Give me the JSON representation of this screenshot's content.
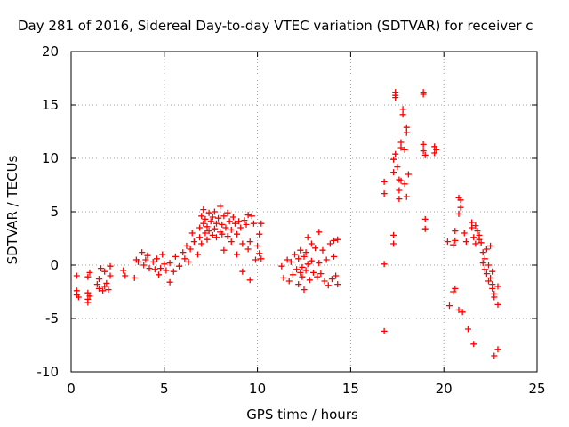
{
  "chart_data": {
    "type": "scatter",
    "title": "Day 281 of 2016, Sidereal Day-to-day VTEC variation (SDTVAR) for receiver c",
    "xlabel": "GPS time / hours",
    "ylabel": "SDTVAR / TECUs",
    "xlim": [
      0,
      25
    ],
    "ylim": [
      -10,
      20
    ],
    "xticks": [
      0,
      5,
      10,
      15,
      20,
      25
    ],
    "yticks": [
      -10,
      -5,
      0,
      5,
      10,
      15,
      20
    ],
    "grid": true,
    "marker": "+",
    "series_color": "#ff0000",
    "series": [
      {
        "name": "SDTVAR",
        "points": [
          [
            0.3,
            -1.0
          ],
          [
            0.3,
            -2.4
          ],
          [
            0.3,
            -2.8
          ],
          [
            0.4,
            -3.0
          ],
          [
            0.9,
            -1.1
          ],
          [
            0.9,
            -2.6
          ],
          [
            0.9,
            -3.2
          ],
          [
            0.9,
            -3.5
          ],
          [
            1.0,
            -2.9
          ],
          [
            1.0,
            -0.7
          ],
          [
            1.4,
            -1.8
          ],
          [
            1.5,
            -2.2
          ],
          [
            1.5,
            -1.3
          ],
          [
            1.6,
            -0.3
          ],
          [
            1.7,
            -2.4
          ],
          [
            1.8,
            -2.0
          ],
          [
            1.8,
            -0.6
          ],
          [
            1.9,
            -1.7
          ],
          [
            2.0,
            -2.3
          ],
          [
            2.1,
            -0.1
          ],
          [
            2.1,
            -1.0
          ],
          [
            2.8,
            -0.5
          ],
          [
            2.9,
            -1.0
          ],
          [
            3.4,
            -1.2
          ],
          [
            3.5,
            0.5
          ],
          [
            3.6,
            0.3
          ],
          [
            3.8,
            1.2
          ],
          [
            3.9,
            0.0
          ],
          [
            4.0,
            0.5
          ],
          [
            4.1,
            0.9
          ],
          [
            4.2,
            -0.3
          ],
          [
            4.4,
            0.3
          ],
          [
            4.5,
            -0.4
          ],
          [
            4.6,
            0.6
          ],
          [
            4.7,
            -0.9
          ],
          [
            4.8,
            -0.3
          ],
          [
            4.9,
            1.0
          ],
          [
            5.0,
            0.1
          ],
          [
            5.1,
            -0.5
          ],
          [
            5.3,
            -1.6
          ],
          [
            5.3,
            0.2
          ],
          [
            5.5,
            -0.6
          ],
          [
            5.6,
            0.8
          ],
          [
            5.8,
            -0.1
          ],
          [
            6.0,
            1.2
          ],
          [
            6.1,
            0.6
          ],
          [
            6.2,
            1.8
          ],
          [
            6.3,
            0.3
          ],
          [
            6.4,
            1.5
          ],
          [
            6.5,
            3.0
          ],
          [
            6.6,
            2.2
          ],
          [
            6.8,
            1.0
          ],
          [
            6.9,
            2.6
          ],
          [
            6.9,
            3.5
          ],
          [
            7.0,
            4.6
          ],
          [
            7.0,
            2.0
          ],
          [
            7.1,
            5.2
          ],
          [
            7.1,
            3.9
          ],
          [
            7.2,
            3.0
          ],
          [
            7.2,
            4.3
          ],
          [
            7.3,
            2.4
          ],
          [
            7.3,
            3.6
          ],
          [
            7.4,
            4.9
          ],
          [
            7.4,
            3.2
          ],
          [
            7.5,
            4.1
          ],
          [
            7.6,
            2.8
          ],
          [
            7.6,
            4.5
          ],
          [
            7.7,
            3.4
          ],
          [
            7.7,
            5.0
          ],
          [
            7.8,
            3.9
          ],
          [
            7.8,
            2.6
          ],
          [
            7.9,
            4.4
          ],
          [
            8.0,
            3.1
          ],
          [
            8.0,
            5.5
          ],
          [
            8.1,
            3.8
          ],
          [
            8.1,
            2.9
          ],
          [
            8.2,
            4.6
          ],
          [
            8.2,
            1.4
          ],
          [
            8.3,
            3.5
          ],
          [
            8.4,
            4.9
          ],
          [
            8.4,
            2.7
          ],
          [
            8.5,
            4.1
          ],
          [
            8.6,
            3.3
          ],
          [
            8.6,
            2.2
          ],
          [
            8.7,
            4.5
          ],
          [
            8.8,
            3.9
          ],
          [
            8.9,
            1.0
          ],
          [
            8.9,
            2.9
          ],
          [
            9.0,
            4.1
          ],
          [
            9.1,
            3.5
          ],
          [
            9.2,
            2.0
          ],
          [
            9.2,
            -0.6
          ],
          [
            9.3,
            4.2
          ],
          [
            9.4,
            3.8
          ],
          [
            9.5,
            4.7
          ],
          [
            9.5,
            1.5
          ],
          [
            9.6,
            -1.4
          ],
          [
            9.6,
            2.2
          ],
          [
            9.7,
            4.6
          ],
          [
            9.8,
            3.9
          ],
          [
            9.9,
            0.5
          ],
          [
            10.0,
            1.8
          ],
          [
            10.1,
            2.9
          ],
          [
            10.1,
            1.1
          ],
          [
            10.2,
            3.9
          ],
          [
            10.2,
            0.6
          ],
          [
            11.3,
            -0.1
          ],
          [
            11.4,
            -1.2
          ],
          [
            11.6,
            0.5
          ],
          [
            11.7,
            -1.5
          ],
          [
            11.8,
            0.3
          ],
          [
            11.9,
            -0.9
          ],
          [
            12.0,
            1.0
          ],
          [
            12.1,
            -0.4
          ],
          [
            12.2,
            -1.8
          ],
          [
            12.2,
            0.6
          ],
          [
            12.3,
            -0.7
          ],
          [
            12.3,
            1.4
          ],
          [
            12.4,
            -0.2
          ],
          [
            12.4,
            -1.1
          ],
          [
            12.5,
            0.8
          ],
          [
            12.5,
            -2.3
          ],
          [
            12.6,
            1.2
          ],
          [
            12.6,
            -0.5
          ],
          [
            12.7,
            2.6
          ],
          [
            12.7,
            0.1
          ],
          [
            12.8,
            -1.4
          ],
          [
            12.9,
            2.0
          ],
          [
            12.9,
            0.4
          ],
          [
            13.0,
            -0.7
          ],
          [
            13.1,
            1.6
          ],
          [
            13.2,
            -1.1
          ],
          [
            13.3,
            3.1
          ],
          [
            13.3,
            0.2
          ],
          [
            13.4,
            -0.8
          ],
          [
            13.5,
            1.4
          ],
          [
            13.6,
            -1.5
          ],
          [
            13.7,
            0.5
          ],
          [
            13.8,
            -1.9
          ],
          [
            13.9,
            2.0
          ],
          [
            14.0,
            -1.3
          ],
          [
            14.1,
            2.3
          ],
          [
            14.1,
            0.8
          ],
          [
            14.2,
            -1.0
          ],
          [
            14.3,
            2.4
          ],
          [
            14.3,
            -1.8
          ],
          [
            16.8,
            7.8
          ],
          [
            16.8,
            6.7
          ],
          [
            16.8,
            0.1
          ],
          [
            16.8,
            -6.2
          ],
          [
            17.3,
            2.0
          ],
          [
            17.3,
            2.8
          ],
          [
            17.3,
            9.9
          ],
          [
            17.3,
            8.7
          ],
          [
            17.4,
            10.4
          ],
          [
            17.4,
            15.7
          ],
          [
            17.4,
            16.2
          ],
          [
            17.4,
            15.9
          ],
          [
            17.5,
            9.2
          ],
          [
            17.6,
            8.0
          ],
          [
            17.6,
            7.0
          ],
          [
            17.6,
            6.2
          ],
          [
            17.7,
            11.5
          ],
          [
            17.7,
            11.0
          ],
          [
            17.7,
            7.9
          ],
          [
            17.8,
            14.1
          ],
          [
            17.8,
            14.6
          ],
          [
            17.9,
            10.8
          ],
          [
            17.9,
            7.6
          ],
          [
            18.0,
            6.4
          ],
          [
            18.0,
            12.4
          ],
          [
            18.0,
            12.9
          ],
          [
            18.1,
            8.5
          ],
          [
            18.9,
            16.0
          ],
          [
            18.9,
            16.2
          ],
          [
            18.9,
            11.3
          ],
          [
            18.9,
            10.7
          ],
          [
            19.0,
            10.3
          ],
          [
            19.0,
            4.3
          ],
          [
            19.0,
            3.4
          ],
          [
            19.5,
            11.1
          ],
          [
            19.5,
            10.5
          ],
          [
            19.6,
            10.8
          ],
          [
            20.2,
            2.2
          ],
          [
            20.3,
            -3.8
          ],
          [
            20.5,
            1.9
          ],
          [
            20.5,
            -2.5
          ],
          [
            20.6,
            2.3
          ],
          [
            20.6,
            -2.2
          ],
          [
            20.6,
            3.2
          ],
          [
            20.8,
            -4.2
          ],
          [
            20.8,
            4.8
          ],
          [
            20.8,
            6.3
          ],
          [
            20.9,
            6.1
          ],
          [
            20.9,
            5.4
          ],
          [
            21.0,
            -4.4
          ],
          [
            21.1,
            3.0
          ],
          [
            21.2,
            2.2
          ],
          [
            21.3,
            -6.0
          ],
          [
            21.5,
            4.0
          ],
          [
            21.5,
            3.5
          ],
          [
            21.6,
            2.6
          ],
          [
            21.6,
            -7.4
          ],
          [
            21.7,
            3.7
          ],
          [
            21.7,
            2.0
          ],
          [
            21.8,
            3.2
          ],
          [
            21.9,
            2.4
          ],
          [
            21.9,
            2.8
          ],
          [
            22.0,
            2.1
          ],
          [
            22.1,
            1.2
          ],
          [
            22.1,
            0.2
          ],
          [
            22.2,
            0.6
          ],
          [
            22.2,
            -0.4
          ],
          [
            22.3,
            1.5
          ],
          [
            22.3,
            -0.8
          ],
          [
            22.4,
            -1.5
          ],
          [
            22.4,
            0.0
          ],
          [
            22.5,
            1.8
          ],
          [
            22.5,
            -1.2
          ],
          [
            22.6,
            -2.2
          ],
          [
            22.6,
            -0.6
          ],
          [
            22.6,
            -1.8
          ],
          [
            22.7,
            -2.7
          ],
          [
            22.7,
            -3.0
          ],
          [
            22.7,
            -8.5
          ],
          [
            22.9,
            -2.0
          ],
          [
            22.9,
            -3.7
          ],
          [
            22.9,
            -7.9
          ]
        ]
      }
    ]
  }
}
